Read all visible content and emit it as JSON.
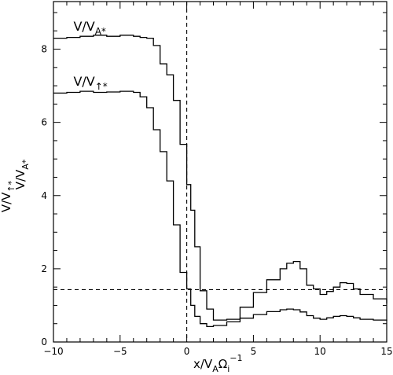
{
  "chart_data": {
    "type": "line",
    "title": "",
    "xlabel": "x/V",
    "xlabel_sub": "A",
    "xlabel_mid": "Ω",
    "xlabel_sub2": "i",
    "xlabel_sup": "−1",
    "ylabel_outer": "V/V",
    "ylabel_outer_sub": "↑*",
    "ylabel_inner": "V/V",
    "ylabel_inner_sub": "A*",
    "xlim": [
      -10,
      15
    ],
    "ylim": [
      0,
      9.3
    ],
    "xticks": [
      -10,
      -5,
      0,
      5,
      10,
      15
    ],
    "xtick_labels": [
      "−10",
      "−5",
      "0",
      "5",
      "10",
      "15"
    ],
    "yticks": [
      0,
      2,
      4,
      6,
      8
    ],
    "ytick_labels": [
      "0",
      "2",
      "4",
      "6",
      "8"
    ],
    "grid": false,
    "reference_lines": {
      "vertical_x": 0,
      "horizontal_y": 1.43
    },
    "series": [
      {
        "name": "V/VA*",
        "label_text": "V/V",
        "label_sub": "A*",
        "label_anchor": [
          -8.5,
          8.5
        ],
        "x": [
          -10,
          -9,
          -8,
          -7,
          -6,
          -5,
          -4,
          -3.5,
          -3,
          -2.5,
          -2,
          -1.5,
          -1,
          -0.5,
          0,
          0.3,
          0.6,
          1,
          1.5,
          2,
          3,
          4,
          5,
          6,
          7,
          7.5,
          8,
          8.5,
          9,
          9.5,
          10,
          10.5,
          11,
          11.5,
          12,
          12.5,
          13,
          14,
          15
        ],
        "values": [
          8.3,
          8.32,
          8.35,
          8.38,
          8.35,
          8.38,
          8.35,
          8.32,
          8.3,
          8.1,
          7.6,
          7.3,
          6.6,
          5.4,
          4.3,
          3.6,
          2.6,
          1.4,
          0.9,
          0.6,
          0.62,
          0.95,
          1.35,
          1.7,
          2.0,
          2.15,
          2.2,
          2.0,
          1.55,
          1.45,
          1.3,
          1.38,
          1.5,
          1.62,
          1.6,
          1.45,
          1.3,
          1.18,
          1.05
        ]
      },
      {
        "name": "V/V↑*",
        "label_text": "V/V",
        "label_sub": "↑*",
        "label_anchor": [
          -8.5,
          7.0
        ],
        "x": [
          -10,
          -9,
          -8,
          -7,
          -6,
          -5,
          -4,
          -3.5,
          -3,
          -2.5,
          -2,
          -1.5,
          -1,
          -0.5,
          0,
          0.3,
          0.6,
          1,
          1.5,
          2,
          3,
          4,
          5,
          6,
          7,
          7.5,
          8,
          8.5,
          9,
          9.5,
          10,
          10.5,
          11,
          11.5,
          12,
          12.5,
          13,
          14,
          15
        ],
        "values": [
          6.8,
          6.82,
          6.85,
          6.82,
          6.83,
          6.85,
          6.82,
          6.7,
          6.4,
          5.8,
          5.2,
          4.4,
          3.2,
          1.9,
          1.45,
          1.0,
          0.7,
          0.5,
          0.42,
          0.45,
          0.55,
          0.65,
          0.75,
          0.83,
          0.88,
          0.9,
          0.88,
          0.82,
          0.72,
          0.65,
          0.62,
          0.66,
          0.7,
          0.72,
          0.7,
          0.66,
          0.62,
          0.6,
          0.58
        ]
      }
    ]
  }
}
